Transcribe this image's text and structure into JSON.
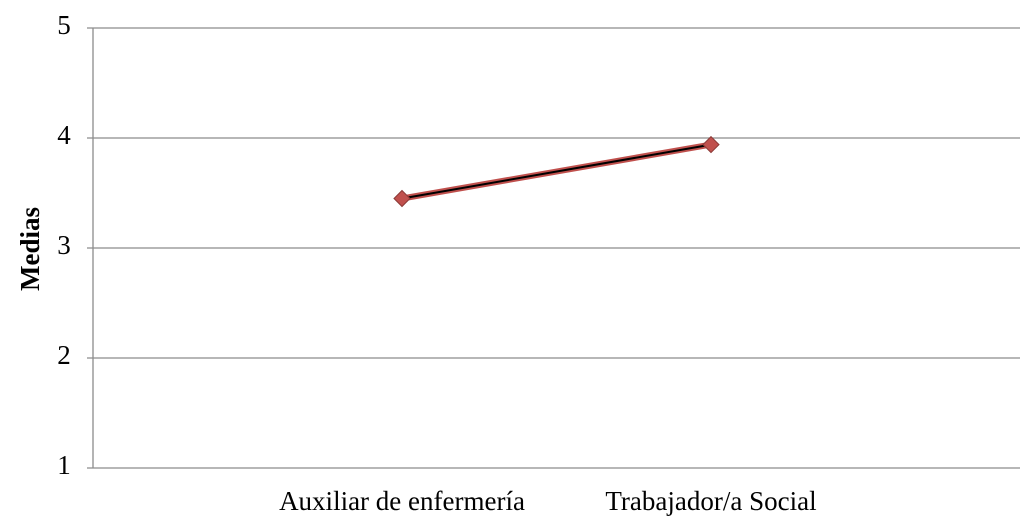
{
  "chart_data": {
    "type": "line",
    "title": "",
    "xlabel": "",
    "ylabel": "Medias",
    "categories": [
      "Auxiliar de enfermería",
      "Trabajador/a Social"
    ],
    "ylim": [
      1,
      5
    ],
    "yticks": [
      "1",
      "2",
      "3",
      "4",
      "5"
    ],
    "grid": true,
    "series": [
      {
        "values": [
          3.45,
          3.94
        ],
        "color": "#c0504d",
        "line_color": "#000000"
      }
    ]
  }
}
